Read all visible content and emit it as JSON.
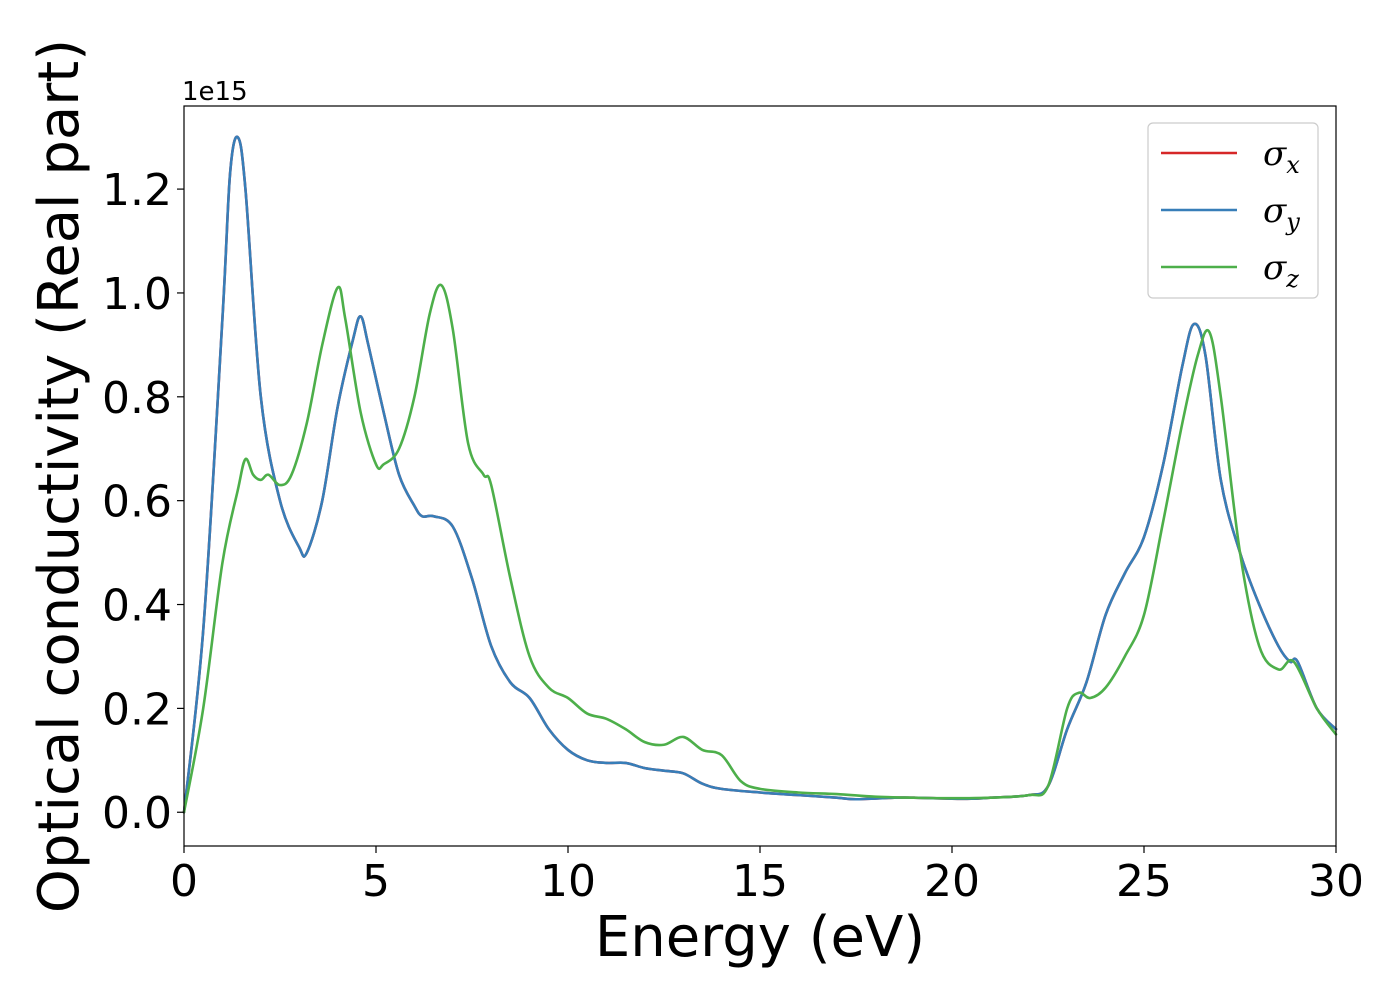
{
  "chart_data": {
    "type": "line",
    "title": "",
    "xlabel": "Energy (eV)",
    "ylabel": "Optical conductivity (Real part)",
    "y_offset_text": "1e15",
    "xlim": [
      0,
      30
    ],
    "ylim": [
      -0.065,
      1.36
    ],
    "x_ticks": [
      0,
      5,
      10,
      15,
      20,
      25,
      30
    ],
    "x_tick_labels": [
      "0",
      "5",
      "10",
      "15",
      "20",
      "25",
      "30"
    ],
    "y_ticks": [
      0.0,
      0.2,
      0.4,
      0.6,
      0.8,
      1.0,
      1.2
    ],
    "y_tick_labels": [
      "0.0",
      "0.2",
      "0.4",
      "0.6",
      "0.8",
      "1.0",
      "1.2"
    ],
    "grid": false,
    "legend_position": "top-right",
    "series": [
      {
        "name": "σx",
        "symbol": "σ",
        "subscript": "x",
        "color": "#d62728",
        "x": [
          0,
          0.5,
          1.0,
          1.2,
          1.4,
          1.6,
          2.0,
          2.5,
          3.0,
          3.2,
          3.6,
          4.0,
          4.4,
          4.6,
          4.8,
          5.2,
          5.6,
          6.0,
          6.2,
          6.5,
          7.0,
          7.5,
          8.0,
          8.5,
          9.0,
          9.5,
          10.0,
          10.5,
          11.0,
          11.5,
          12.0,
          12.5,
          13.0,
          13.5,
          14.0,
          15.0,
          16.0,
          17.0,
          17.5,
          18.5,
          19.0,
          20.0,
          20.5,
          21.0,
          22.0,
          22.5,
          23.0,
          23.5,
          24.0,
          24.5,
          25.0,
          25.5,
          26.0,
          26.3,
          26.6,
          27.0,
          27.5,
          28.0,
          28.5,
          28.8,
          29.0,
          29.5,
          30.0
        ],
        "y": [
          0.0,
          0.35,
          0.95,
          1.23,
          1.3,
          1.2,
          0.8,
          0.6,
          0.51,
          0.5,
          0.6,
          0.78,
          0.91,
          0.955,
          0.9,
          0.77,
          0.65,
          0.59,
          0.57,
          0.57,
          0.55,
          0.45,
          0.32,
          0.25,
          0.22,
          0.16,
          0.12,
          0.1,
          0.095,
          0.095,
          0.085,
          0.08,
          0.075,
          0.055,
          0.045,
          0.038,
          0.033,
          0.028,
          0.025,
          0.028,
          0.028,
          0.026,
          0.026,
          0.028,
          0.033,
          0.05,
          0.16,
          0.25,
          0.38,
          0.46,
          0.53,
          0.67,
          0.86,
          0.94,
          0.88,
          0.64,
          0.5,
          0.4,
          0.32,
          0.29,
          0.29,
          0.2,
          0.16
        ]
      },
      {
        "name": "σy",
        "symbol": "σ",
        "subscript": "y",
        "color": "#377eb8",
        "x": [
          0,
          0.5,
          1.0,
          1.2,
          1.4,
          1.6,
          2.0,
          2.5,
          3.0,
          3.2,
          3.6,
          4.0,
          4.4,
          4.6,
          4.8,
          5.2,
          5.6,
          6.0,
          6.2,
          6.5,
          7.0,
          7.5,
          8.0,
          8.5,
          9.0,
          9.5,
          10.0,
          10.5,
          11.0,
          11.5,
          12.0,
          12.5,
          13.0,
          13.5,
          14.0,
          15.0,
          16.0,
          17.0,
          17.5,
          18.5,
          19.0,
          20.0,
          20.5,
          21.0,
          22.0,
          22.5,
          23.0,
          23.5,
          24.0,
          24.5,
          25.0,
          25.5,
          26.0,
          26.3,
          26.6,
          27.0,
          27.5,
          28.0,
          28.5,
          28.8,
          29.0,
          29.5,
          30.0
        ],
        "y": [
          0.0,
          0.35,
          0.95,
          1.23,
          1.3,
          1.2,
          0.8,
          0.6,
          0.51,
          0.5,
          0.6,
          0.78,
          0.91,
          0.955,
          0.9,
          0.77,
          0.65,
          0.59,
          0.57,
          0.57,
          0.55,
          0.45,
          0.32,
          0.25,
          0.22,
          0.16,
          0.12,
          0.1,
          0.095,
          0.095,
          0.085,
          0.08,
          0.075,
          0.055,
          0.045,
          0.038,
          0.033,
          0.028,
          0.025,
          0.028,
          0.028,
          0.026,
          0.026,
          0.028,
          0.033,
          0.05,
          0.16,
          0.25,
          0.38,
          0.46,
          0.53,
          0.67,
          0.86,
          0.94,
          0.88,
          0.64,
          0.5,
          0.4,
          0.32,
          0.29,
          0.29,
          0.2,
          0.16
        ]
      },
      {
        "name": "σz",
        "symbol": "σ",
        "subscript": "z",
        "color": "#4daf4a",
        "x": [
          0,
          0.5,
          1.0,
          1.4,
          1.6,
          1.8,
          2.0,
          2.2,
          2.5,
          2.8,
          3.2,
          3.6,
          4.0,
          4.2,
          4.6,
          5.0,
          5.2,
          5.6,
          6.0,
          6.4,
          6.7,
          7.0,
          7.4,
          7.8,
          8.0,
          8.5,
          9.0,
          9.5,
          10.0,
          10.5,
          11.0,
          11.5,
          12.0,
          12.5,
          13.0,
          13.5,
          14.0,
          14.5,
          15.0,
          16.0,
          17.0,
          18.0,
          19.0,
          20.0,
          21.0,
          22.0,
          22.5,
          23.0,
          23.3,
          23.6,
          24.0,
          24.5,
          25.0,
          25.5,
          26.0,
          26.4,
          26.7,
          27.0,
          27.5,
          28.0,
          28.5,
          28.9,
          29.5,
          30.0
        ],
        "y": [
          0.0,
          0.2,
          0.48,
          0.62,
          0.68,
          0.65,
          0.64,
          0.65,
          0.63,
          0.65,
          0.75,
          0.9,
          1.01,
          0.95,
          0.77,
          0.67,
          0.67,
          0.7,
          0.8,
          0.96,
          1.015,
          0.93,
          0.71,
          0.65,
          0.63,
          0.45,
          0.3,
          0.24,
          0.22,
          0.19,
          0.18,
          0.16,
          0.135,
          0.13,
          0.145,
          0.12,
          0.11,
          0.06,
          0.045,
          0.038,
          0.035,
          0.03,
          0.028,
          0.027,
          0.028,
          0.033,
          0.05,
          0.2,
          0.23,
          0.22,
          0.24,
          0.3,
          0.38,
          0.56,
          0.75,
          0.88,
          0.925,
          0.8,
          0.5,
          0.32,
          0.275,
          0.29,
          0.2,
          0.15
        ]
      }
    ]
  }
}
